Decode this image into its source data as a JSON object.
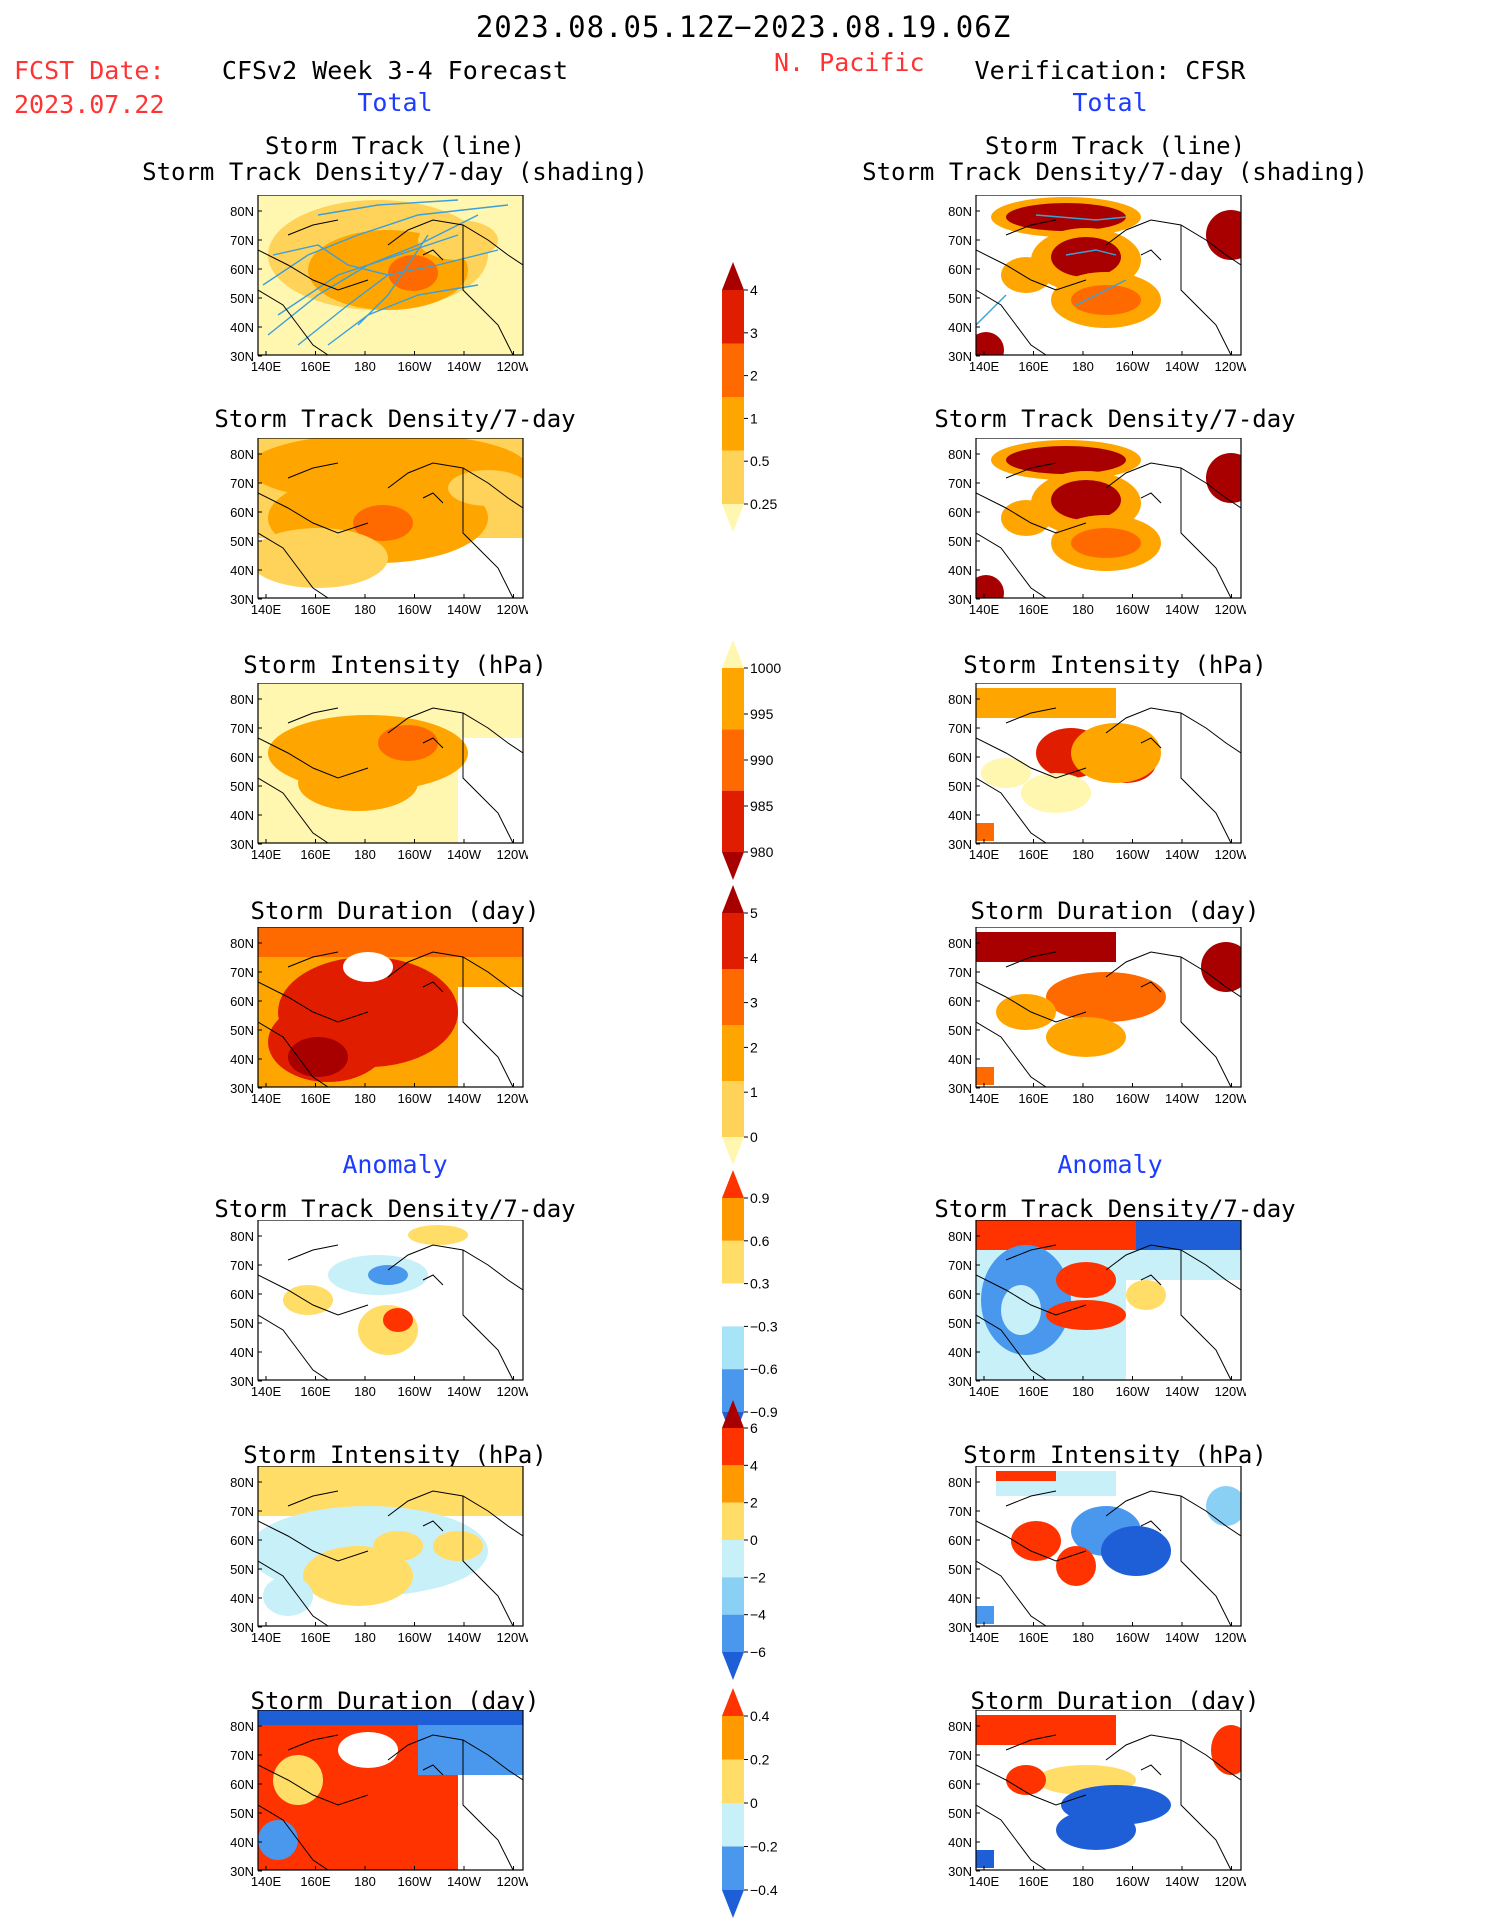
{
  "header": {
    "date_range": "2023.08.05.12Z−2023.08.19.06Z",
    "fcst_label": "FCST Date:",
    "fcst_date": "2023.07.22",
    "left_title": "CFSv2 Week 3-4 Forecast",
    "region": "N. Pacific",
    "right_title": "Verification: CFSR",
    "total_label": "Total",
    "anomaly_label": "Anomaly"
  },
  "axes": {
    "lat_ticks": [
      "80N",
      "70N",
      "60N",
      "50N",
      "40N",
      "30N"
    ],
    "lon_ticks": [
      "140E",
      "160E",
      "180",
      "160W",
      "140W",
      "120W"
    ]
  },
  "panels": [
    {
      "title1": "Storm Track (line)",
      "title2": "Storm Track Density/7-day (shading)"
    },
    {
      "title1": "Storm Track Density/7-day"
    },
    {
      "title1": "Storm Intensity (hPa)"
    },
    {
      "title1": "Storm Duration (day)"
    },
    {
      "title1": "Storm Track Density/7-day"
    },
    {
      "title1": "Storm Intensity (hPa)"
    },
    {
      "title1": "Storm Duration (day)"
    }
  ],
  "colorbars": [
    {
      "name": "density-total",
      "labels": [
        "4",
        "3",
        "2",
        "1",
        "0.5",
        "0.25"
      ],
      "colors": [
        "#a80000",
        "#e11d00",
        "#ff6a00",
        "#ffa500",
        "#ffd35a",
        "#fff6b0"
      ]
    },
    {
      "name": "intensity-total",
      "labels": [
        "1000",
        "995",
        "990",
        "985",
        "980"
      ],
      "colors": [
        "#fff6b0",
        "#ffa500",
        "#ff6a00",
        "#e11d00",
        "#a80000"
      ]
    },
    {
      "name": "duration-total",
      "labels": [
        "5",
        "4",
        "3",
        "2",
        "1",
        "0"
      ],
      "colors": [
        "#a80000",
        "#e11d00",
        "#ff6a00",
        "#ffa500",
        "#ffd35a",
        "#fff6b0"
      ]
    },
    {
      "name": "density-anomaly",
      "labels": [
        "0.9",
        "0.6",
        "0.3",
        "−0.3",
        "−0.6",
        "−0.9"
      ],
      "colors": [
        "#ff3300",
        "#ff9900",
        "#ffdd66",
        "#ffffff",
        "#a8e4f7",
        "#4a98ee",
        "#1e5fd8"
      ]
    },
    {
      "name": "intensity-anomaly",
      "labels": [
        "6",
        "4",
        "2",
        "0",
        "−2",
        "−4",
        "−6"
      ],
      "colors": [
        "#a80000",
        "#ff3300",
        "#ff9900",
        "#ffdd66",
        "#c8f0f8",
        "#8ad0f5",
        "#4a98ee",
        "#1e5fd8"
      ]
    },
    {
      "name": "duration-anomaly",
      "labels": [
        "0.4",
        "0.2",
        "0",
        "−0.2",
        "−0.4"
      ],
      "colors": [
        "#ff3300",
        "#ff9900",
        "#ffdd66",
        "#c8f0f8",
        "#4a98ee",
        "#1e5fd8"
      ]
    }
  ]
}
